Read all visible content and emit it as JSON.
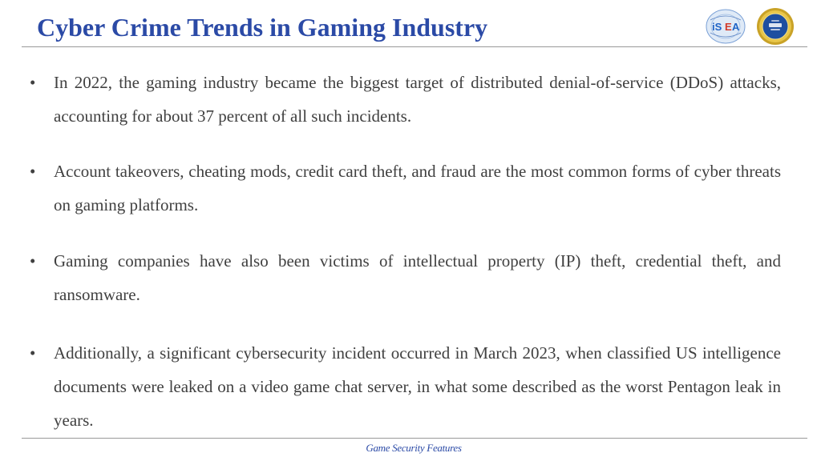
{
  "slide": {
    "title": "Cyber Crime Trends in Gaming Industry",
    "footer": "Game Security Features",
    "bullet_symbol": "•",
    "bullets": [
      {
        "text": "In 2022, the gaming industry became the biggest target of distributed denial-of-service (DDoS) attacks, accounting for about 37 percent of all such incidents."
      },
      {
        "text": "Account takeovers, cheating mods, credit card theft, and fraud are the most common forms of cyber threats on gaming platforms."
      },
      {
        "text": "Gaming companies have also been victims of intellectual property (IP) theft, credential theft, and ransomware."
      },
      {
        "text": "Additionally, a significant cybersecurity incident occurred in March 2023, when classified US intelligence documents were leaked on a video game chat server, in what some described as the worst Pentagon leak in years."
      }
    ],
    "logos": {
      "left": "isea-logo",
      "right": "cdac-logo"
    },
    "colors": {
      "title": "#2b4aa6",
      "body_text": "#404040",
      "rule": "#9a9a9a",
      "footer": "#2b4aa6"
    }
  }
}
